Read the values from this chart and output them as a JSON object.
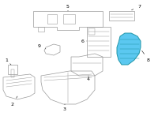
{
  "bg_color": "#ffffff",
  "fig_width": 2.0,
  "fig_height": 1.47,
  "dpi": 100,
  "highlight_color": "#5bc8f0",
  "outline_color": "#999999",
  "label_fontsize": 4.5
}
